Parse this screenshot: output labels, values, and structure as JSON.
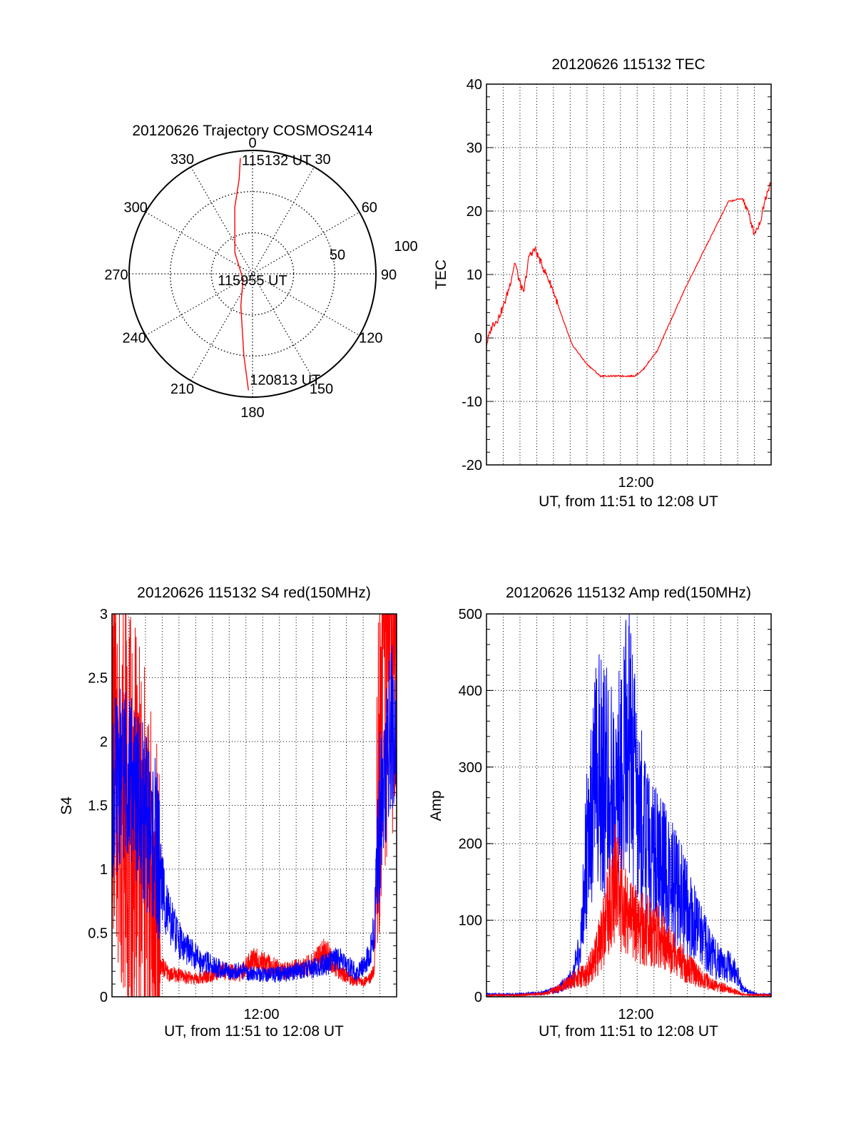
{
  "chart_data": [
    {
      "type": "polar",
      "title": "20120626 Trajectory COSMOS2414",
      "angle_labels": [
        "0",
        "30",
        "60",
        "90",
        "120",
        "150",
        "180",
        "210",
        "240",
        "270",
        "300",
        "330"
      ],
      "radius_labels": [
        "50",
        "100"
      ],
      "series": [
        {
          "color": "#ff0000",
          "points": [
            {
              "az": 354,
              "el": 5
            },
            {
              "az": 352,
              "el": 20
            },
            {
              "az": 345,
              "el": 40
            },
            {
              "az": 320,
              "el": 70
            },
            {
              "az": 240,
              "el": 82
            },
            {
              "az": 200,
              "el": 65
            },
            {
              "az": 186,
              "el": 30
            },
            {
              "az": 182,
              "el": 5
            }
          ]
        }
      ],
      "annotations": [
        {
          "text": "115132 UT",
          "az": 354,
          "el": 5
        },
        {
          "text": "115955 UT",
          "az": 0,
          "el": 90
        },
        {
          "text": "120813 UT",
          "az": 182,
          "el": 5
        }
      ]
    },
    {
      "type": "line",
      "title": "20120626 115132 TEC",
      "xlabel": "UT, from 11:51 to 12:08 UT",
      "ylabel": "TEC",
      "x_tick_labels": [
        "12:00"
      ],
      "ylim": [
        -20,
        40
      ],
      "yticks": [
        "-20",
        "-10",
        "0",
        "10",
        "20",
        "30",
        "40"
      ],
      "grid": true,
      "series": [
        {
          "color": "#ff0000",
          "x": [
            0,
            0.02,
            0.04,
            0.06,
            0.08,
            0.1,
            0.115,
            0.13,
            0.15,
            0.17,
            0.19,
            0.21,
            0.23,
            0.26,
            0.3,
            0.35,
            0.4,
            0.45,
            0.5,
            0.52,
            0.55,
            0.6,
            0.65,
            0.7,
            0.75,
            0.8,
            0.85,
            0.9,
            0.925,
            0.94,
            0.96,
            0.98,
            1.0
          ],
          "y": [
            -1,
            2,
            3,
            5,
            8,
            12,
            9,
            7,
            13,
            14,
            12,
            10,
            8,
            4,
            -1,
            -4,
            -6,
            -6,
            -6,
            -6,
            -5,
            -2,
            3,
            8,
            12.5,
            17,
            21.5,
            22,
            19,
            16.5,
            18,
            22,
            25
          ]
        }
      ]
    },
    {
      "type": "line",
      "title": "20120626 115132 S4 red(150MHz)",
      "xlabel": "UT, from 11:51 to 12:08 UT",
      "ylabel": "S4",
      "x_tick_labels": [
        "12:00"
      ],
      "ylim": [
        0,
        3
      ],
      "yticks": [
        "0",
        "0.5",
        "1",
        "1.5",
        "2",
        "2.5",
        "3"
      ],
      "grid": true,
      "series": [
        {
          "color": "#ff0000",
          "x": [
            0,
            0.05,
            0.1,
            0.15,
            0.17,
            0.2,
            0.25,
            0.3,
            0.35,
            0.4,
            0.45,
            0.5,
            0.55,
            0.6,
            0.65,
            0.7,
            0.75,
            0.8,
            0.85,
            0.9,
            0.92,
            0.95,
            1.0
          ],
          "y": [
            2.0,
            1.5,
            1.2,
            0.6,
            0.25,
            0.18,
            0.16,
            0.14,
            0.18,
            0.2,
            0.18,
            0.3,
            0.25,
            0.2,
            0.22,
            0.25,
            0.35,
            0.2,
            0.12,
            0.12,
            0.2,
            2.5,
            3.0
          ]
        },
        {
          "color": "#0000ff",
          "x": [
            0,
            0.05,
            0.1,
            0.15,
            0.2,
            0.25,
            0.3,
            0.35,
            0.4,
            0.45,
            0.5,
            0.55,
            0.6,
            0.65,
            0.7,
            0.75,
            0.8,
            0.83,
            0.86,
            0.9,
            0.92,
            0.95,
            1.0
          ],
          "y": [
            1.6,
            1.8,
            1.5,
            1.2,
            0.6,
            0.4,
            0.3,
            0.25,
            0.2,
            0.2,
            0.18,
            0.17,
            0.18,
            0.2,
            0.22,
            0.25,
            0.3,
            0.25,
            0.18,
            0.3,
            0.5,
            1.8,
            2.2
          ]
        }
      ]
    },
    {
      "type": "line",
      "title": "20120626 115132 Amp red(150MHz)",
      "xlabel": "UT, from 11:51 to 12:08 UT",
      "ylabel": "Amp",
      "x_tick_labels": [
        "12:00"
      ],
      "ylim": [
        0,
        500
      ],
      "yticks": [
        "0",
        "100",
        "200",
        "300",
        "400",
        "500"
      ],
      "grid": true,
      "series": [
        {
          "color": "#0000ff",
          "x": [
            0,
            0.1,
            0.2,
            0.25,
            0.3,
            0.33,
            0.36,
            0.4,
            0.45,
            0.5,
            0.53,
            0.56,
            0.6,
            0.65,
            0.7,
            0.75,
            0.8,
            0.85,
            0.88,
            0.9,
            0.95,
            1.0
          ],
          "y": [
            3,
            3,
            5,
            10,
            25,
            60,
            250,
            300,
            250,
            350,
            250,
            200,
            180,
            150,
            120,
            80,
            50,
            40,
            30,
            10,
            3,
            3
          ]
        },
        {
          "color": "#ff0000",
          "x": [
            0,
            0.1,
            0.2,
            0.25,
            0.3,
            0.35,
            0.38,
            0.4,
            0.45,
            0.48,
            0.5,
            0.55,
            0.6,
            0.65,
            0.7,
            0.75,
            0.8,
            0.85,
            0.9,
            1.0
          ],
          "y": [
            2,
            2,
            4,
            10,
            20,
            30,
            50,
            70,
            150,
            120,
            100,
            90,
            80,
            60,
            40,
            25,
            15,
            10,
            3,
            2
          ]
        }
      ]
    }
  ]
}
